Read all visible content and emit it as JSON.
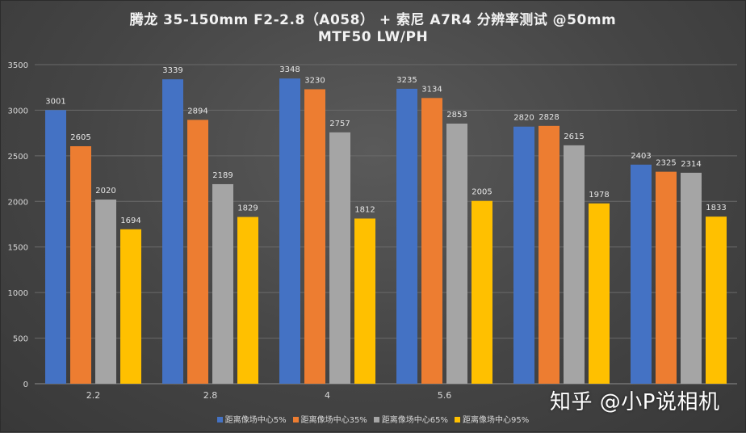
{
  "chart_data": {
    "type": "bar",
    "title": "腾龙 35-150mm F2-2.8（A058） + 索尼 A7R4 分辨率测试 @50mm",
    "subtitle": "MTF50 LW/PH",
    "categories": [
      "2.2",
      "2.8",
      "4",
      "5.6",
      "",
      ""
    ],
    "series": [
      {
        "name": "距离像场中心5%",
        "color": "#4472c4",
        "values": [
          3001,
          3339,
          3348,
          3235,
          2820,
          2403
        ]
      },
      {
        "name": "距离像场中心35%",
        "color": "#ed7d31",
        "values": [
          2605,
          2894,
          3230,
          3134,
          2828,
          2325
        ]
      },
      {
        "name": "距离像场中心65%",
        "color": "#a5a5a5",
        "values": [
          2020,
          2189,
          2757,
          2853,
          2615,
          2314
        ]
      },
      {
        "name": "距离像场中心95%",
        "color": "#ffc000",
        "values": [
          1694,
          1829,
          1812,
          2005,
          1978,
          1833
        ]
      }
    ],
    "ylim": [
      0,
      3500
    ],
    "yticks": [
      0,
      500,
      1000,
      1500,
      2000,
      2500,
      3000,
      3500
    ],
    "grid": true,
    "legend": "bottom"
  },
  "watermark": "知乎 @小P说相机"
}
